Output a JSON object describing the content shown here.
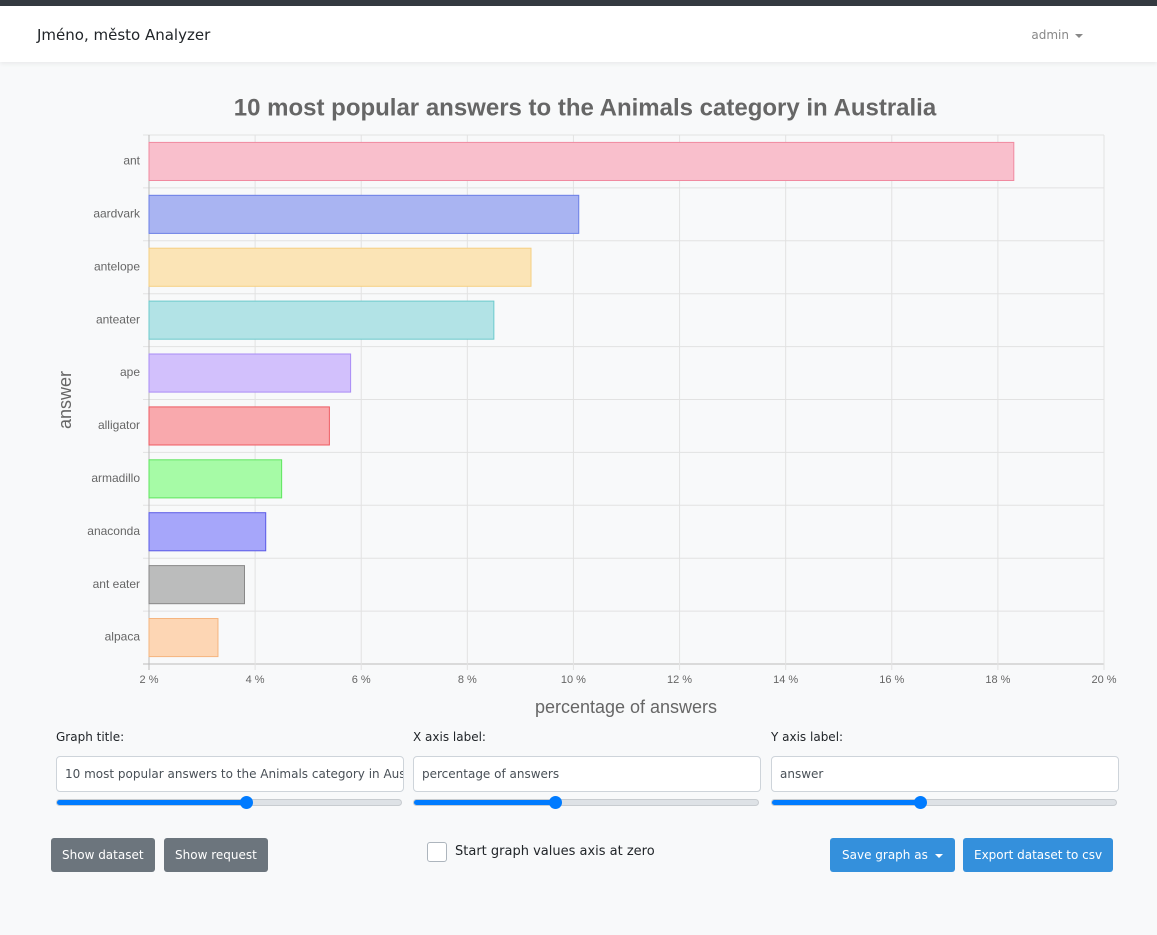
{
  "navbar": {
    "brand": "Jméno, město Analyzer",
    "user": "admin"
  },
  "chart_data": {
    "type": "hbar",
    "title": "10 most popular answers to the Animals category in Australia",
    "x_label": "percentage of answers",
    "y_label": "answer",
    "categories": [
      "ant",
      "aardvark",
      "antelope",
      "anteater",
      "ape",
      "alligator",
      "armadillo",
      "anaconda",
      "ant eater",
      "alpaca"
    ],
    "values": [
      18.3,
      10.1,
      9.2,
      8.5,
      5.8,
      5.4,
      4.5,
      4.2,
      3.8,
      3.3
    ],
    "colors": [
      "#f9bfcc",
      "#a9b4f2",
      "#fbe4b6",
      "#b2e3e6",
      "#d2c0fc",
      "#f9a9ad",
      "#a6fba6",
      "#a6a6fa",
      "#bbbcbc",
      "#fdd6b4"
    ],
    "border_colors": [
      "#f08aa0",
      "#6a7ee6",
      "#f5cf82",
      "#6ccacc",
      "#a98cf5",
      "#ee5a62",
      "#5fe55f",
      "#5a5ae6",
      "#888888",
      "#f5b57f"
    ],
    "xlim": [
      2,
      20
    ],
    "xticks": [
      {
        "value": 2,
        "label": "2 %"
      },
      {
        "value": 4,
        "label": "4 %"
      },
      {
        "value": 6,
        "label": "6 %"
      },
      {
        "value": 8,
        "label": "8 %"
      },
      {
        "value": 10,
        "label": "10 %"
      },
      {
        "value": 12,
        "label": "12 %"
      },
      {
        "value": 14,
        "label": "14 %"
      },
      {
        "value": 16,
        "label": "16 %"
      },
      {
        "value": 18,
        "label": "18 %"
      },
      {
        "value": 20,
        "label": "20 %"
      }
    ],
    "grid": true
  },
  "form": {
    "title_label": "Graph title:",
    "x_label_label": "X axis label:",
    "y_label_label": "Y axis label:",
    "sliders": [
      55,
      41,
      43
    ],
    "show_dataset": "Show dataset",
    "show_request": "Show request",
    "zero_checkbox": "Start graph values axis at zero",
    "save_graph": "Save graph as",
    "export": "Export dataset to csv"
  }
}
